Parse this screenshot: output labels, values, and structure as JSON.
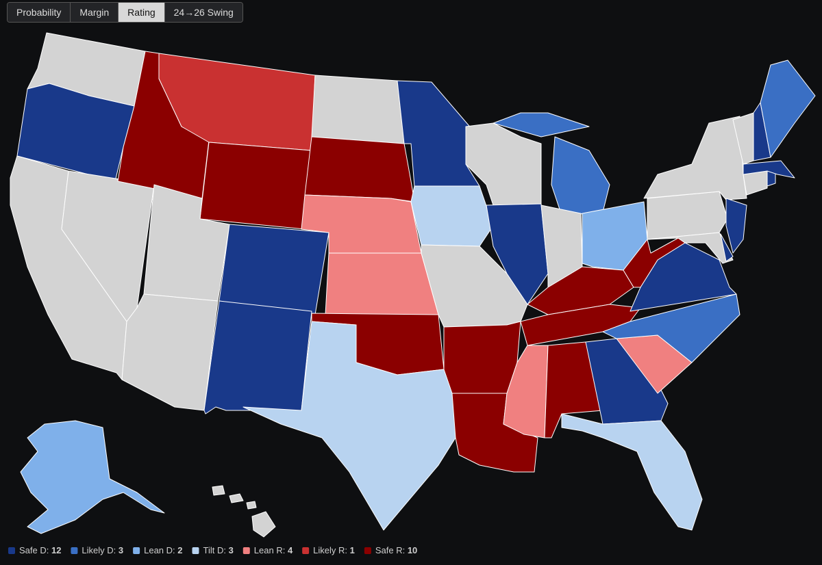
{
  "tabs": [
    "Probability",
    "Margin",
    "Rating",
    "24→26 Swing"
  ],
  "active_tab": 2,
  "legend": [
    {
      "label": "Safe D:",
      "count": 12,
      "color": "#19398a"
    },
    {
      "label": "Likely D:",
      "count": 3,
      "color": "#3a6fc4"
    },
    {
      "label": "Lean D:",
      "count": 2,
      "color": "#7fb0ea"
    },
    {
      "label": "Tilt D:",
      "count": 3,
      "color": "#b8d3f0"
    },
    {
      "label": "Lean R:",
      "count": 4,
      "color": "#f08080"
    },
    {
      "label": "Likely R:",
      "count": 1,
      "color": "#c93131"
    },
    {
      "label": "Safe R:",
      "count": 10,
      "color": "#8b0000"
    }
  ]
}
